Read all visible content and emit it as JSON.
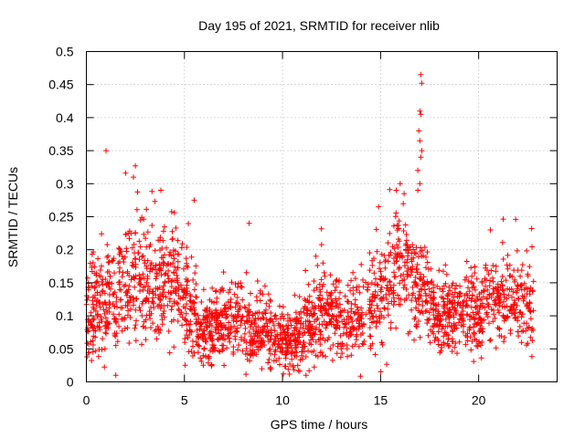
{
  "chart_data": {
    "type": "scatter",
    "title": "Day 195 of 2021, SRMTID for receiver nlib",
    "xlabel": "GPS time / hours",
    "ylabel": "SRMTID / TECUs",
    "xlim": [
      0,
      24
    ],
    "ylim": [
      0,
      0.5
    ],
    "x_ticks": [
      0,
      5,
      10,
      15,
      20
    ],
    "x_tick_labels": [
      "0",
      "5",
      "10",
      "15",
      "20"
    ],
    "y_ticks": [
      0,
      0.05,
      0.1,
      0.15,
      0.2,
      0.25,
      0.3,
      0.35,
      0.4,
      0.45,
      0.5
    ],
    "y_tick_labels": [
      "0",
      "0.05",
      "0.1",
      "0.15",
      "0.2",
      "0.25",
      "0.3",
      "0.35",
      "0.4",
      "0.45",
      "0.5"
    ],
    "grid": true,
    "marker": "+",
    "color": "#ff0000",
    "data_extent_hours": [
      0,
      22.8
    ],
    "profile_hours": [
      0,
      0.5,
      1,
      1.5,
      2,
      2.5,
      3,
      3.5,
      4,
      4.5,
      5,
      5.5,
      6,
      6.5,
      7,
      7.5,
      8,
      8.5,
      9,
      9.5,
      10,
      10.5,
      11,
      11.5,
      12,
      12.5,
      13,
      13.5,
      14,
      14.5,
      15,
      15.5,
      16,
      16.5,
      17,
      17.5,
      18,
      18.5,
      19,
      19.5,
      20,
      20.5,
      21,
      21.5,
      22,
      22.8
    ],
    "profile_median": [
      0.1,
      0.11,
      0.12,
      0.13,
      0.15,
      0.15,
      0.15,
      0.15,
      0.15,
      0.14,
      0.12,
      0.1,
      0.08,
      0.08,
      0.09,
      0.09,
      0.09,
      0.08,
      0.08,
      0.07,
      0.06,
      0.06,
      0.07,
      0.09,
      0.1,
      0.1,
      0.09,
      0.09,
      0.1,
      0.12,
      0.14,
      0.16,
      0.17,
      0.17,
      0.15,
      0.12,
      0.1,
      0.1,
      0.1,
      0.11,
      0.11,
      0.11,
      0.12,
      0.12,
      0.12,
      0.11
    ],
    "profile_spread": [
      0.04,
      0.05,
      0.05,
      0.05,
      0.06,
      0.06,
      0.06,
      0.06,
      0.05,
      0.05,
      0.05,
      0.04,
      0.035,
      0.035,
      0.035,
      0.035,
      0.035,
      0.035,
      0.035,
      0.03,
      0.03,
      0.03,
      0.035,
      0.04,
      0.04,
      0.035,
      0.035,
      0.035,
      0.04,
      0.05,
      0.06,
      0.06,
      0.06,
      0.06,
      0.05,
      0.04,
      0.035,
      0.035,
      0.04,
      0.04,
      0.04,
      0.04,
      0.045,
      0.045,
      0.045,
      0.04
    ],
    "outliers": [
      {
        "x": 1.0,
        "y": 0.35
      },
      {
        "x": 2.5,
        "y": 0.327
      },
      {
        "x": 2.0,
        "y": 0.316
      },
      {
        "x": 2.4,
        "y": 0.31
      },
      {
        "x": 3.8,
        "y": 0.29
      },
      {
        "x": 5.5,
        "y": 0.275
      },
      {
        "x": 8.3,
        "y": 0.24
      },
      {
        "x": 1.5,
        "y": 0.01
      },
      {
        "x": 11.2,
        "y": 0.01
      },
      {
        "x": 17.05,
        "y": 0.465
      },
      {
        "x": 17.1,
        "y": 0.452
      },
      {
        "x": 17.0,
        "y": 0.41
      },
      {
        "x": 17.05,
        "y": 0.405
      },
      {
        "x": 16.95,
        "y": 0.38
      },
      {
        "x": 17.0,
        "y": 0.365
      },
      {
        "x": 17.1,
        "y": 0.35
      },
      {
        "x": 17.05,
        "y": 0.34
      },
      {
        "x": 16.9,
        "y": 0.32
      },
      {
        "x": 17.0,
        "y": 0.3
      },
      {
        "x": 16.9,
        "y": 0.29
      },
      {
        "x": 16.0,
        "y": 0.3
      },
      {
        "x": 15.8,
        "y": 0.29
      },
      {
        "x": 16.2,
        "y": 0.285
      },
      {
        "x": 14.9,
        "y": 0.265
      },
      {
        "x": 22.7,
        "y": 0.232
      },
      {
        "x": 20.6,
        "y": 0.23
      }
    ]
  }
}
